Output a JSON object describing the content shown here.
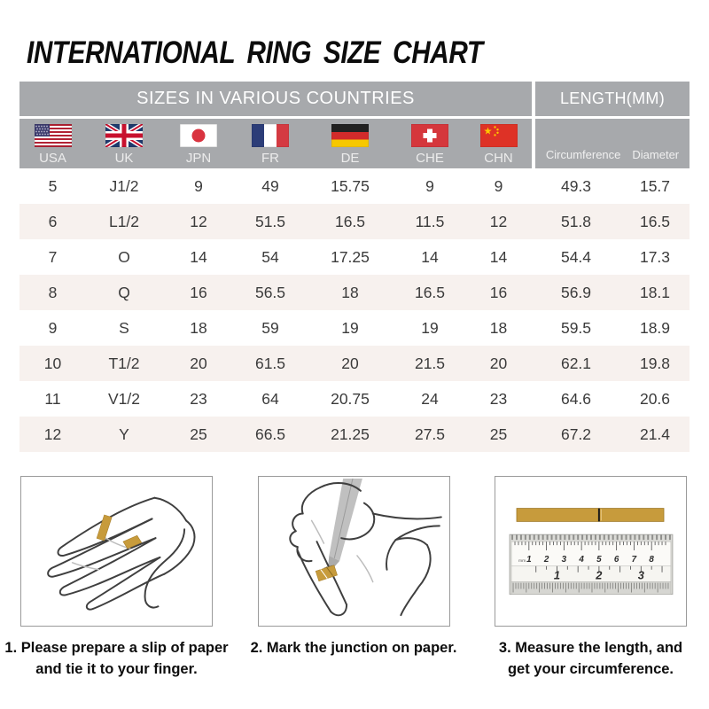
{
  "title": "INTERNATIONAL RING SIZE CHART",
  "table": {
    "group_headers": {
      "countries": "SIZES IN VARIOUS COUNTRIES",
      "length": "LENGTH(MM)"
    },
    "countries": [
      {
        "code": "USA",
        "flag": "usa-flag"
      },
      {
        "code": "UK",
        "flag": "uk-flag"
      },
      {
        "code": "JPN",
        "flag": "japan-flag"
      },
      {
        "code": "FR",
        "flag": "france-flag"
      },
      {
        "code": "DE",
        "flag": "germany-flag"
      },
      {
        "code": "CHE",
        "flag": "switzerland-flag"
      },
      {
        "code": "CHN",
        "flag": "china-flag"
      }
    ],
    "length_columns": [
      "Circumference",
      "Diameter"
    ],
    "rows": [
      [
        "5",
        "J1/2",
        "9",
        "49",
        "15.75",
        "9",
        "9",
        "49.3",
        "15.7"
      ],
      [
        "6",
        "L1/2",
        "12",
        "51.5",
        "16.5",
        "11.5",
        "12",
        "51.8",
        "16.5"
      ],
      [
        "7",
        "O",
        "14",
        "54",
        "17.25",
        "14",
        "14",
        "54.4",
        "17.3"
      ],
      [
        "8",
        "Q",
        "16",
        "56.5",
        "18",
        "16.5",
        "16",
        "56.9",
        "18.1"
      ],
      [
        "9",
        "S",
        "18",
        "59",
        "19",
        "19",
        "18",
        "59.5",
        "18.9"
      ],
      [
        "10",
        "T1/2",
        "20",
        "61.5",
        "20",
        "21.5",
        "20",
        "62.1",
        "19.8"
      ],
      [
        "11",
        "V1/2",
        "23",
        "64",
        "20.75",
        "24",
        "23",
        "64.6",
        "20.6"
      ],
      [
        "12",
        "Y",
        "25",
        "66.5",
        "21.25",
        "27.5",
        "25",
        "67.2",
        "21.4"
      ]
    ]
  },
  "chart_data": {
    "type": "table",
    "title": "INTERNATIONAL RING SIZE CHART",
    "column_groups": [
      "SIZES IN VARIOUS COUNTRIES",
      "LENGTH(MM)"
    ],
    "columns": [
      "USA",
      "UK",
      "JPN",
      "FR",
      "DE",
      "CHE",
      "CHN",
      "Circumference",
      "Diameter"
    ],
    "rows": [
      [
        "5",
        "J1/2",
        "9",
        "49",
        "15.75",
        "9",
        "9",
        "49.3",
        "15.7"
      ],
      [
        "6",
        "L1/2",
        "12",
        "51.5",
        "16.5",
        "11.5",
        "12",
        "51.8",
        "16.5"
      ],
      [
        "7",
        "O",
        "14",
        "54",
        "17.25",
        "14",
        "14",
        "54.4",
        "17.3"
      ],
      [
        "8",
        "Q",
        "16",
        "56.5",
        "18",
        "16.5",
        "16",
        "56.9",
        "18.1"
      ],
      [
        "9",
        "S",
        "18",
        "59",
        "19",
        "19",
        "18",
        "59.5",
        "18.9"
      ],
      [
        "10",
        "T1/2",
        "20",
        "61.5",
        "20",
        "21.5",
        "20",
        "62.1",
        "19.8"
      ],
      [
        "11",
        "V1/2",
        "23",
        "64",
        "20.75",
        "24",
        "23",
        "64.6",
        "20.6"
      ],
      [
        "12",
        "Y",
        "25",
        "66.5",
        "21.25",
        "27.5",
        "25",
        "67.2",
        "21.4"
      ]
    ]
  },
  "steps": [
    {
      "caption_line1": "1. Please prepare a slip of paper",
      "caption_line2": "and tie it to your finger."
    },
    {
      "caption_line1": "2. Mark the junction on paper.",
      "caption_line2": ""
    },
    {
      "caption_line1": "3. Measure the length, and",
      "caption_line2": "get your circumference."
    }
  ],
  "ruler": {
    "cm_numbers": [
      "1",
      "2",
      "3",
      "4",
      "5",
      "6",
      "7",
      "8"
    ],
    "inch_numbers": [
      "1",
      "2",
      "3"
    ],
    "unit_label": "mm"
  },
  "colors": {
    "header_gray": "#a7a9ac",
    "row_stripe": "#f7f1ee",
    "gold_accent": "#c79b3c",
    "table_text": "#3b3b3b"
  }
}
